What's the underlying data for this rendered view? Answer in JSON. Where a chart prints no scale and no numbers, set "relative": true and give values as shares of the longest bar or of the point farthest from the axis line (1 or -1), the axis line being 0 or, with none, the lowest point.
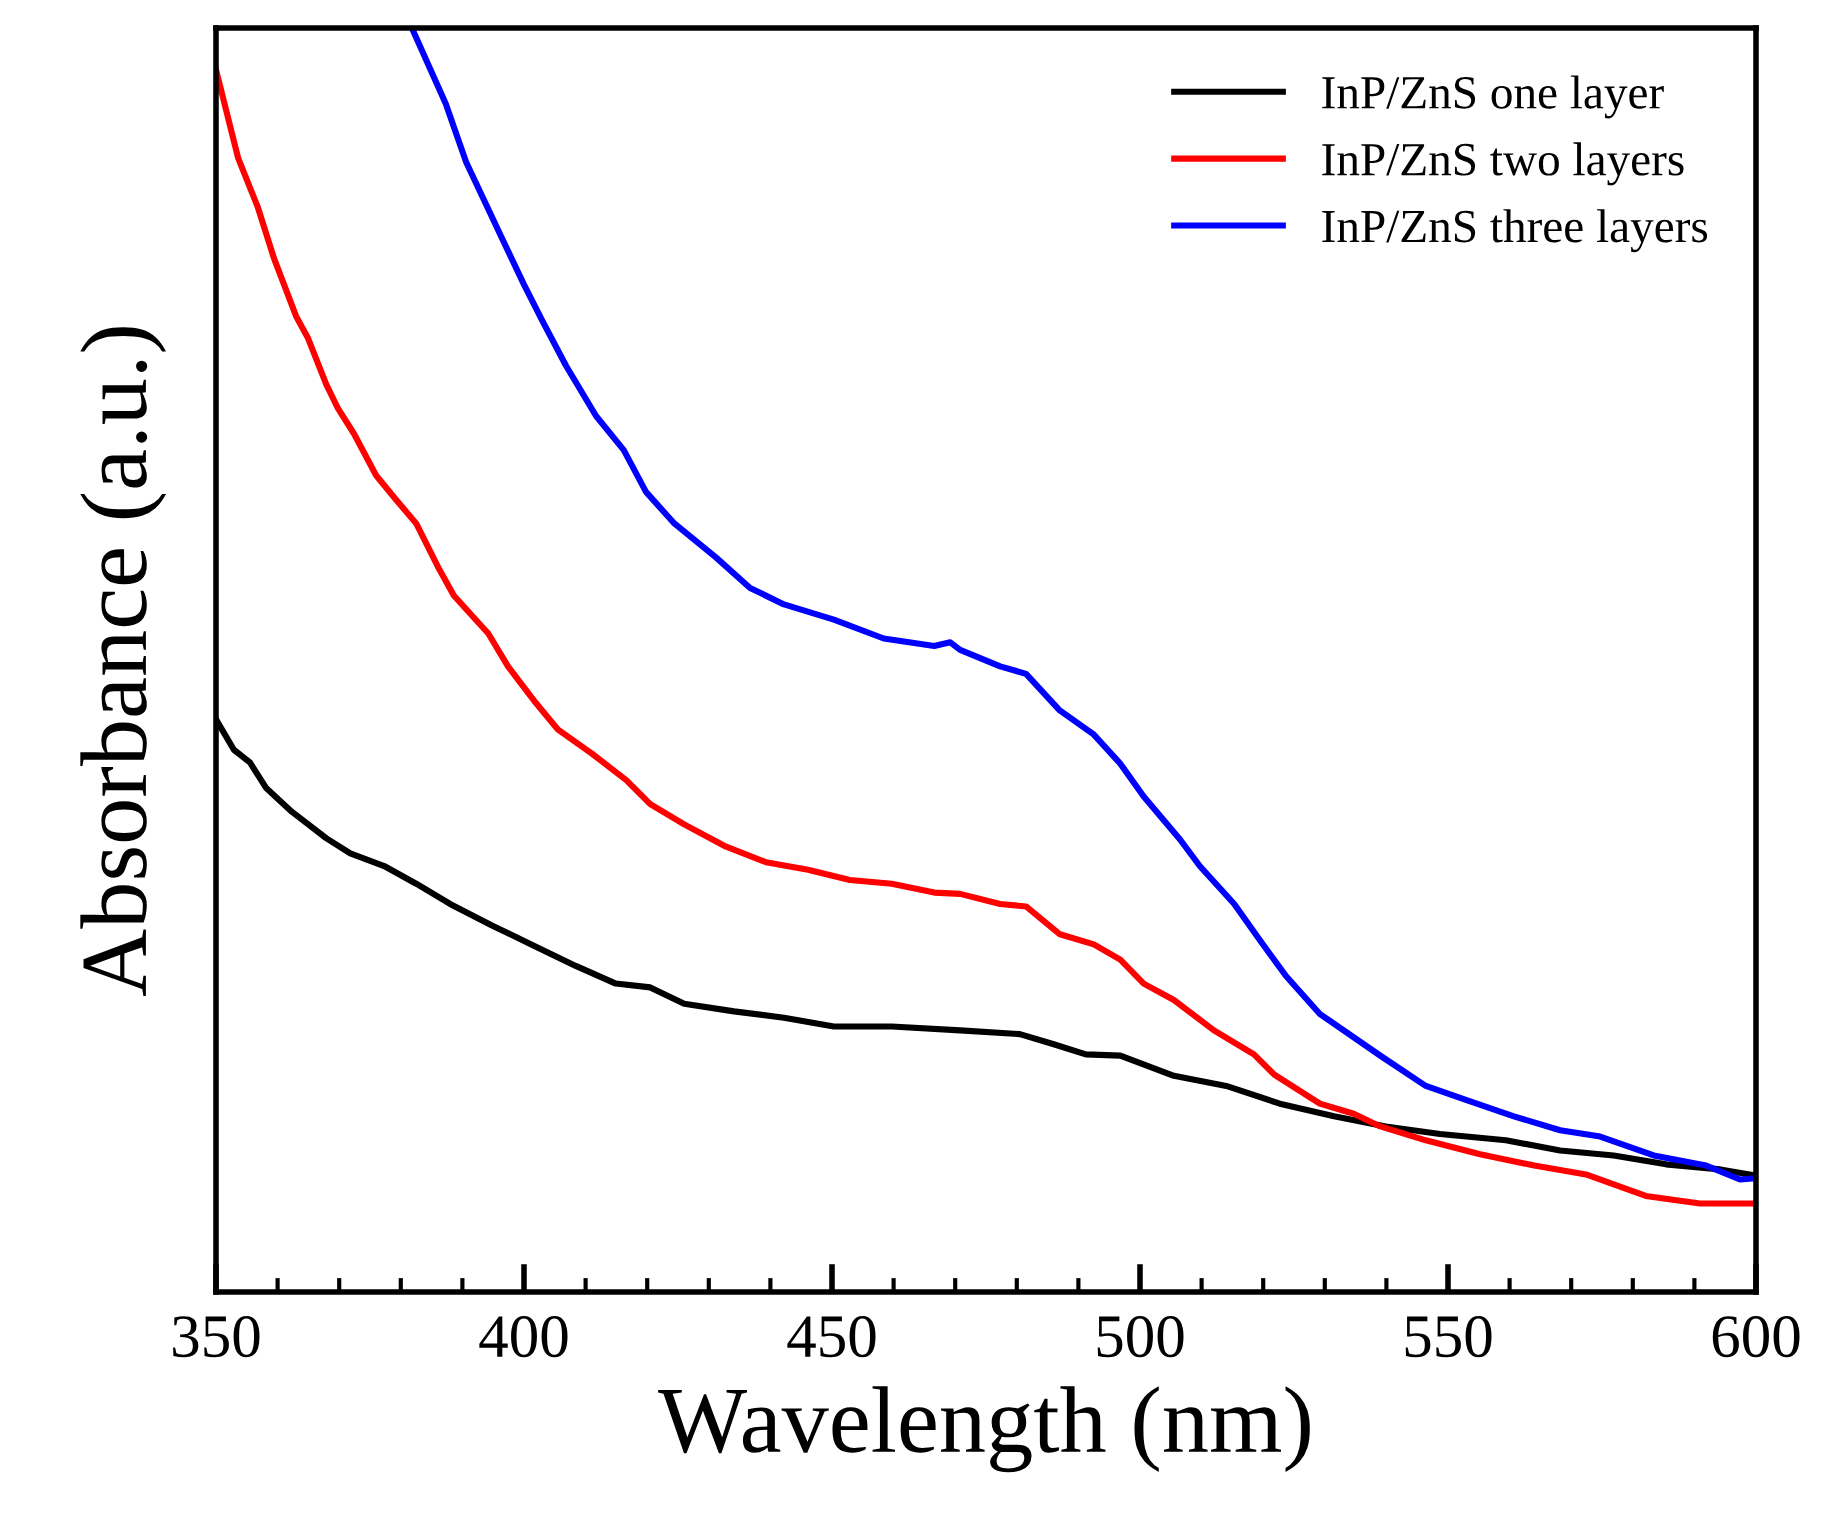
{
  "chart_data": {
    "type": "line",
    "xlabel": "Wavelength (nm)",
    "ylabel": "Absorbance (a.u.)",
    "relative": true,
    "xlim": [
      350,
      600
    ],
    "xticks": [
      350,
      400,
      450,
      500,
      550,
      600
    ],
    "legend": "top right",
    "grid": false,
    "marker": "none",
    "line_style": "solid",
    "series": [
      {
        "name": "InP/ZnS one layer",
        "color": "#000000",
        "x": [
          350.0,
          352.9,
          355.5,
          358.1,
          362.3,
          367.9,
          371.8,
          377.3,
          382.5,
          388.0,
          394.8,
          401.6,
          408.4,
          414.9,
          420.5,
          426.0,
          434.1,
          442.2,
          450.3,
          459.7,
          470.8,
          480.5,
          486.0,
          491.2,
          496.8,
          505.5,
          514.0,
          522.7,
          531.5,
          539.9,
          548.7,
          559.4,
          568.2,
          576.9,
          585.4,
          594.2,
          600.0
        ],
        "values": [
          0.453,
          0.429,
          0.419,
          0.399,
          0.38,
          0.359,
          0.347,
          0.337,
          0.323,
          0.307,
          0.29,
          0.274,
          0.258,
          0.244,
          0.241,
          0.228,
          0.222,
          0.217,
          0.21,
          0.21,
          0.207,
          0.204,
          0.196,
          0.188,
          0.187,
          0.171,
          0.163,
          0.149,
          0.139,
          0.131,
          0.125,
          0.12,
          0.112,
          0.108,
          0.101,
          0.097,
          0.092
        ]
      },
      {
        "name": "InP/ZnS two layers",
        "color": "#ff0000",
        "x": [
          350.0,
          353.6,
          356.8,
          359.4,
          363.0,
          364.9,
          367.9,
          369.8,
          372.4,
          376.0,
          379.2,
          382.5,
          386.0,
          388.6,
          394.2,
          397.4,
          401.6,
          405.5,
          411.0,
          416.6,
          420.5,
          426.0,
          432.5,
          439.3,
          446.1,
          452.9,
          459.7,
          466.6,
          470.8,
          477.3,
          481.5,
          487.0,
          492.5,
          496.8,
          500.6,
          505.5,
          512.0,
          518.5,
          521.8,
          529.2,
          534.7,
          539.0,
          546.4,
          555.2,
          564.0,
          572.4,
          582.1,
          590.9,
          600.0
        ],
        "values": [
          0.967,
          0.897,
          0.858,
          0.818,
          0.772,
          0.755,
          0.718,
          0.699,
          0.679,
          0.646,
          0.627,
          0.608,
          0.574,
          0.551,
          0.521,
          0.495,
          0.468,
          0.445,
          0.426,
          0.405,
          0.386,
          0.37,
          0.353,
          0.34,
          0.334,
          0.326,
          0.323,
          0.316,
          0.315,
          0.307,
          0.305,
          0.283,
          0.275,
          0.263,
          0.244,
          0.231,
          0.207,
          0.188,
          0.172,
          0.149,
          0.141,
          0.131,
          0.12,
          0.109,
          0.1,
          0.093,
          0.076,
          0.07,
          0.07
        ]
      },
      {
        "name": "InP/ZnS three layers",
        "color": "#0000ff",
        "x": [
          381.8,
          387.3,
          390.6,
          396.1,
          400.0,
          402.9,
          406.8,
          411.7,
          416.2,
          419.8,
          424.4,
          431.2,
          436.7,
          442.2,
          450.3,
          458.4,
          466.6,
          469.2,
          470.8,
          477.3,
          481.5,
          487.0,
          492.5,
          496.8,
          500.6,
          506.5,
          509.7,
          515.3,
          519.5,
          523.7,
          529.2,
          539.0,
          546.4,
          552.9,
          560.7,
          568.2,
          574.7,
          583.4,
          591.9,
          597.4,
          600.0
        ],
        "values": [
          1.0,
          0.94,
          0.894,
          0.837,
          0.797,
          0.769,
          0.733,
          0.693,
          0.666,
          0.633,
          0.608,
          0.581,
          0.557,
          0.544,
          0.532,
          0.517,
          0.511,
          0.514,
          0.508,
          0.495,
          0.489,
          0.46,
          0.441,
          0.418,
          0.392,
          0.358,
          0.337,
          0.307,
          0.278,
          0.25,
          0.22,
          0.187,
          0.163,
          0.152,
          0.139,
          0.128,
          0.123,
          0.108,
          0.1,
          0.089,
          0.09
        ]
      }
    ]
  }
}
